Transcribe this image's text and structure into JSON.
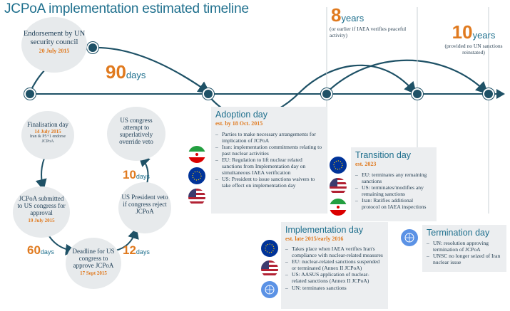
{
  "title": "JCPoA implementation estimated timeline",
  "endorsement": {
    "title": "Endorsement by UN security council",
    "date": "20 July 2015"
  },
  "ninety": {
    "number": "90",
    "unit": "days"
  },
  "eight": {
    "number": "8",
    "unit": "years",
    "note": "(or earlier if IAEA verifies peaceful activity)"
  },
  "ten": {
    "number": "10",
    "unit": "years",
    "note": "(provided no UN sanctions reinstated)"
  },
  "cycle": {
    "finalisation": {
      "title": "Finalisation day",
      "date": "14 July 2015",
      "note": "Iran & P5+1 endorse JCPoA"
    },
    "submitted": {
      "title": "JCPoA submitted to US congress for approval",
      "date": "19 July 2015"
    },
    "deadline": {
      "title": "Deadline for US congress to approve JCPoA",
      "date": "17 Sept 2015"
    },
    "veto": {
      "title": "US President veto if congress reject JCPoA"
    },
    "override": {
      "title": "US congress attempt to superlatively override veto"
    },
    "sixty": {
      "number": "60",
      "unit": "days"
    },
    "twelve": {
      "number": "12",
      "unit": "days"
    },
    "ten_days": {
      "number": "10",
      "unit": "days"
    }
  },
  "adoption": {
    "title": "Adoption day",
    "date": "est. by 18 Oct. 2015",
    "items": [
      "Parties to make necessary arrangements for implication of JCPoA",
      "Iran: implementation commitments relating to past nuclear activities",
      "EU: Regulation to lift nuclear related sanctions from Implementation day on simultaneous IAEA verification",
      "US: President to issue sanctions waivers to take effect on implementation day"
    ]
  },
  "transition": {
    "title": "Transition day",
    "date": "est. 2023",
    "items": [
      "EU: terminates any remaining sanctions",
      "US: terminates/modifies any remaining sanctions",
      "Iran: Ratifies additional protocol on IAEA inspections"
    ]
  },
  "implementation": {
    "title": "Implementation day",
    "date": "est. late 2015/early 2016",
    "items": [
      "Takes place when IAEA verifies Iran's compliance with nuclear-related measures",
      "EU: nuclear-related sanctions suspended or terminated (Annex II JCPoA)",
      "US: AASUS application of nuclear-related sanctions (Annex II JCPoA)",
      "UN: terminates sanctions"
    ]
  },
  "termination": {
    "title": "Termination day",
    "items": [
      "UN: resolution approving termination of JCPoA",
      "UNSC no longer seized of Iran nuclear issue"
    ]
  },
  "colors": {
    "accent": "#e07a1f",
    "navy": "#1e5166",
    "teal": "#1e6f8d",
    "panel": "#eceef0"
  }
}
